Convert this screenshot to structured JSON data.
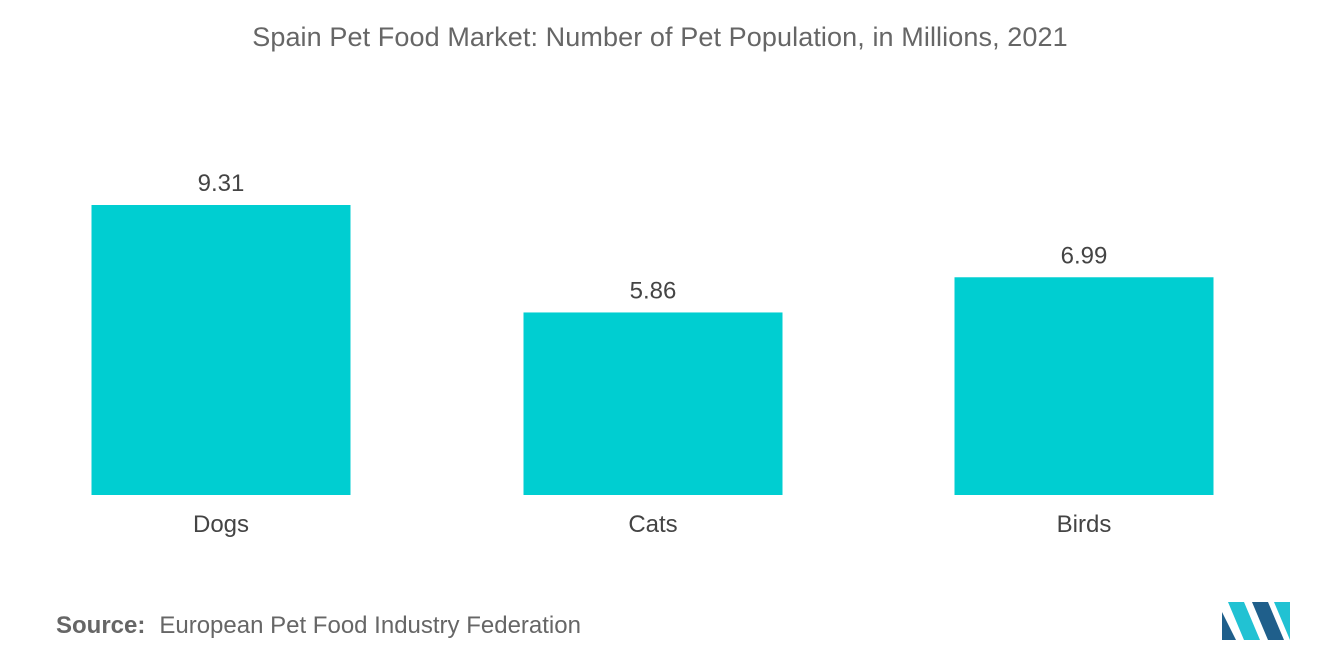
{
  "title": "Spain Pet Food Market: Number of Pet Population, in Millions, 2021",
  "source": {
    "label": "Source:",
    "text": "European Pet Food Industry Federation"
  },
  "colors": {
    "bar": "#00CED1",
    "logo_dark": "#1f5f8b",
    "logo_light": "#21c2d3"
  },
  "logo": {
    "icon": "mordor-intelligence-logo-icon"
  },
  "chart_data": {
    "type": "bar",
    "categories": [
      "Dogs",
      "Cats",
      "Birds"
    ],
    "values": [
      9.31,
      5.86,
      6.99
    ],
    "data_labels": [
      "9.31",
      "5.86",
      "6.99"
    ],
    "title": "Spain Pet Food Market: Number of Pet Population, in Millions, 2021",
    "xlabel": "",
    "ylabel": "",
    "ylim": [
      0,
      9.31
    ],
    "grid": false,
    "legend": "none"
  }
}
